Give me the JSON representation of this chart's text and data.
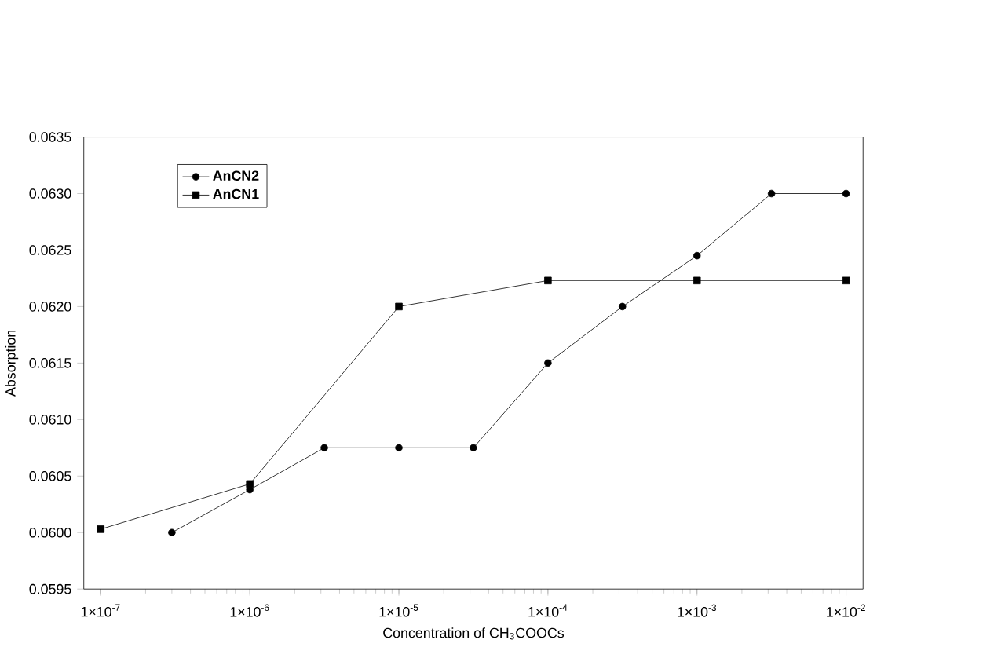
{
  "chart_data": {
    "type": "line",
    "xlabel": "Concentration of CH$_{3}$COOCs",
    "ylabel": "Absorption",
    "log": "x",
    "legend": "top left",
    "grid": false,
    "xlim": [
      7.7e-08,
      0.013
    ],
    "ylim": [
      0.0595,
      0.0635
    ],
    "xticks": [
      {
        "value": 1e-07,
        "label": "1×10$^{-7}$"
      },
      {
        "value": 1e-06,
        "label": "1×10$^{-6}$"
      },
      {
        "value": 1e-05,
        "label": "1×10$^{-5}$"
      },
      {
        "value": 0.0001,
        "label": "1×10$^{-4}$"
      },
      {
        "value": 0.001,
        "label": "1×10$^{-3}$"
      },
      {
        "value": 0.01,
        "label": "1×10$^{-2}$"
      }
    ],
    "yticks": [
      {
        "value": 0.0595,
        "label": "0.0595"
      },
      {
        "value": 0.06,
        "label": "0.0600"
      },
      {
        "value": 0.0605,
        "label": "0.0605"
      },
      {
        "value": 0.061,
        "label": "0.0610"
      },
      {
        "value": 0.0615,
        "label": "0.0615"
      },
      {
        "value": 0.062,
        "label": "0.0620"
      },
      {
        "value": 0.0625,
        "label": "0.0625"
      },
      {
        "value": 0.063,
        "label": "0.0630"
      },
      {
        "value": 0.0635,
        "label": "0.0635"
      }
    ],
    "series": [
      {
        "name": "AnCN2",
        "color": "#000000",
        "marker": "circle",
        "x": [
          3e-07,
          1e-06,
          3.16e-06,
          1e-05,
          3.16e-05,
          0.0001,
          0.000316,
          0.001,
          0.00316,
          0.01
        ],
        "values": [
          0.06,
          0.06038,
          0.06075,
          0.06075,
          0.06075,
          0.0615,
          0.062,
          0.06245,
          0.063,
          0.063
        ]
      },
      {
        "name": "AnCN1",
        "color": "#000000",
        "marker": "square",
        "x": [
          1e-07,
          1e-06,
          1e-05,
          0.0001,
          0.001,
          0.01
        ],
        "values": [
          0.06003,
          0.06043,
          0.062,
          0.06223,
          0.06223,
          0.06223
        ]
      }
    ]
  }
}
